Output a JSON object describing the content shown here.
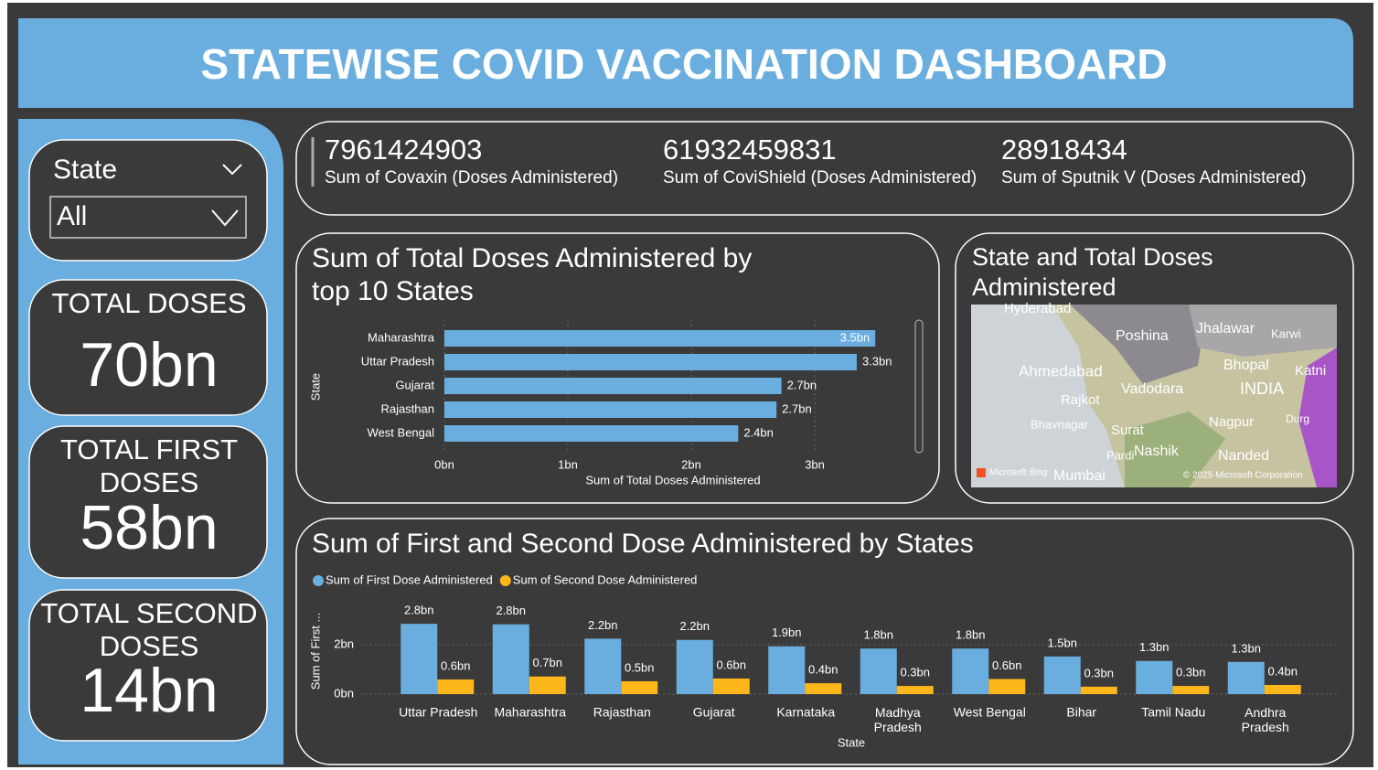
{
  "header": {
    "title": "STATEWISE COVID VACCINATION DASHBOARD"
  },
  "slicer": {
    "label": "State",
    "selected": "All"
  },
  "cards": [
    {
      "label": "TOTAL DOSES",
      "value": "70bn"
    },
    {
      "label": "TOTAL FIRST DOSES",
      "value": "58bn"
    },
    {
      "label": "TOTAL SECOND DOSES",
      "value": "14bn"
    }
  ],
  "kpis": [
    {
      "value": 7961424903,
      "label": "Sum of Covaxin (Doses Administered)"
    },
    {
      "value": 61932459831,
      "label": "Sum of CoviShield (Doses Administered)"
    },
    {
      "value": 28918434,
      "label": "Sum of Sputnik V (Doses Administered)"
    }
  ],
  "map": {
    "title": "State and Total Doses Administered",
    "labels": [
      "Hyderabad",
      "Poshina",
      "Jhalawar",
      "Karwi",
      "Ahmedabad",
      "Bhopal",
      "Katni",
      "Rajkot",
      "Vadodara",
      "INDIA",
      "Bhavnagar",
      "Surat",
      "Nagpur",
      "Durg",
      "Pardi",
      "Nashik",
      "Nanded",
      "Mumbai",
      "Microsoft Bing",
      "© 2025 Microsoft Corporation"
    ]
  },
  "chart_data": [
    {
      "type": "hbar",
      "title": "Sum of Total Doses Administered by top 10 States",
      "categories": [
        "Maharashtra",
        "Uttar Pradesh",
        "Gujarat",
        "Rajasthan",
        "West Bengal"
      ],
      "values": [
        3.49,
        3.34,
        2.73,
        2.69,
        2.38
      ],
      "value_labels": [
        "3.5bn",
        "3.3bn",
        "2.7bn",
        "2.7bn",
        "2.4bn"
      ],
      "color": "#6aaee0",
      "xlim": [
        0,
        3.77
      ],
      "xticks": [
        {
          "value": 0,
          "label": "0bn"
        },
        {
          "value": 1,
          "label": "1bn"
        },
        {
          "value": 2,
          "label": "2bn"
        },
        {
          "value": 3,
          "label": "3bn"
        }
      ],
      "xlabel": "Sum of Total Doses Administered",
      "ylabel": "State",
      "grid": true
    },
    {
      "type": "bar",
      "title": "Sum of First and Second Dose Administered by States",
      "categories": [
        "Uttar Pradesh",
        "Maharashtra",
        "Rajasthan",
        "Gujarat",
        "Karnataka",
        "Madhya Pradesh",
        "West Bengal",
        "Bihar",
        "Tamil Nadu",
        "Andhra Pradesh"
      ],
      "series": [
        {
          "name": "Sum of First Dose Administered",
          "color": "#6aaee0",
          "values": [
            2.84,
            2.82,
            2.24,
            2.19,
            1.93,
            1.84,
            1.84,
            1.52,
            1.34,
            1.3
          ],
          "value_labels": [
            "2.8bn",
            "2.8bn",
            "2.2bn",
            "2.2bn",
            "1.9bn",
            "1.8bn",
            "1.8bn",
            "1.5bn",
            "1.3bn",
            "1.3bn"
          ]
        },
        {
          "name": "Sum of Second Dose Administered",
          "color": "#fdb71a",
          "values": [
            0.59,
            0.71,
            0.52,
            0.63,
            0.44,
            0.33,
            0.61,
            0.3,
            0.33,
            0.37
          ],
          "value_labels": [
            "0.6bn",
            "0.7bn",
            "0.5bn",
            "0.6bn",
            "0.4bn",
            "0.3bn",
            "0.6bn",
            "0.3bn",
            "0.3bn",
            "0.4bn"
          ]
        }
      ],
      "ylim": [
        0,
        3.4
      ],
      "yticks": [
        {
          "value": 0,
          "label": "0bn"
        },
        {
          "value": 2,
          "label": "2bn"
        }
      ],
      "xlabel": "State",
      "ylabel": "Sum of First ...",
      "grid": true
    }
  ]
}
